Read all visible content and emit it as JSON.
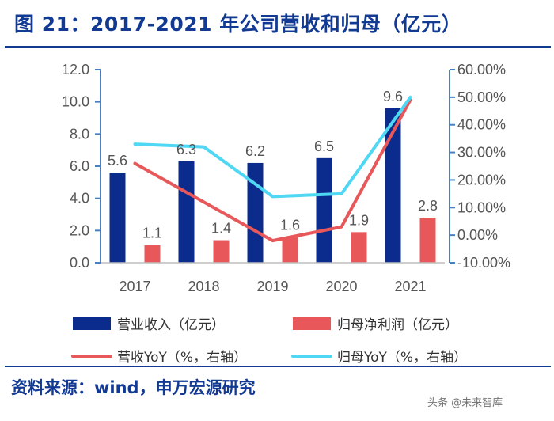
{
  "title": "图 21：2017-2021 年公司营收和归母（亿元）",
  "source": "资料来源：wind，申万宏源研究",
  "watermark": "头条 @未来智库",
  "colors": {
    "revenue_bar": "#0b2c8c",
    "profit_bar": "#e8585a",
    "revenue_yoy_line": "#e8585a",
    "profit_yoy_line": "#4fd7f4",
    "title": "#123a93",
    "axis": "#4a7fc0"
  },
  "chart_data": {
    "type": "bar",
    "categories": [
      "2017",
      "2018",
      "2019",
      "2020",
      "2021"
    ],
    "series": [
      {
        "name": "营业收入（亿元）",
        "kind": "bar",
        "axis": "left",
        "values": [
          5.6,
          6.3,
          6.2,
          6.5,
          9.6
        ],
        "labels": [
          "5.6",
          "6.3",
          "6.2",
          "6.5",
          "9.6"
        ]
      },
      {
        "name": "归母净利润（亿元）",
        "kind": "bar",
        "axis": "left",
        "values": [
          1.1,
          1.4,
          1.6,
          1.9,
          2.8
        ],
        "labels": [
          "1.1",
          "1.4",
          "1.6",
          "1.9",
          "2.8"
        ]
      },
      {
        "name": "营收YoY（%，右轴）",
        "kind": "line",
        "axis": "right",
        "values": [
          26,
          12,
          -2,
          3,
          49
        ]
      },
      {
        "name": "归母YoY（%，右轴）",
        "kind": "line",
        "axis": "right",
        "values": [
          33,
          32,
          14,
          15,
          50
        ]
      }
    ],
    "left_axis": {
      "min": 0,
      "max": 12,
      "step": 2,
      "ticks": [
        "0.0",
        "2.0",
        "4.0",
        "6.0",
        "8.0",
        "10.0",
        "12.0"
      ]
    },
    "right_axis": {
      "min": -10,
      "max": 60,
      "step": 10,
      "ticks": [
        "-10.00%",
        "0.00%",
        "10.00%",
        "20.00%",
        "30.00%",
        "40.00%",
        "50.00%",
        "60.00%"
      ]
    },
    "legend": [
      {
        "label": "营业收入（亿元）",
        "kind": "bar"
      },
      {
        "label": "归母净利润（亿元）",
        "kind": "bar"
      },
      {
        "label": "营收YoY（%，右轴）",
        "kind": "line"
      },
      {
        "label": "归母YoY（%，右轴）",
        "kind": "line"
      }
    ],
    "legend_position": "bottom"
  }
}
